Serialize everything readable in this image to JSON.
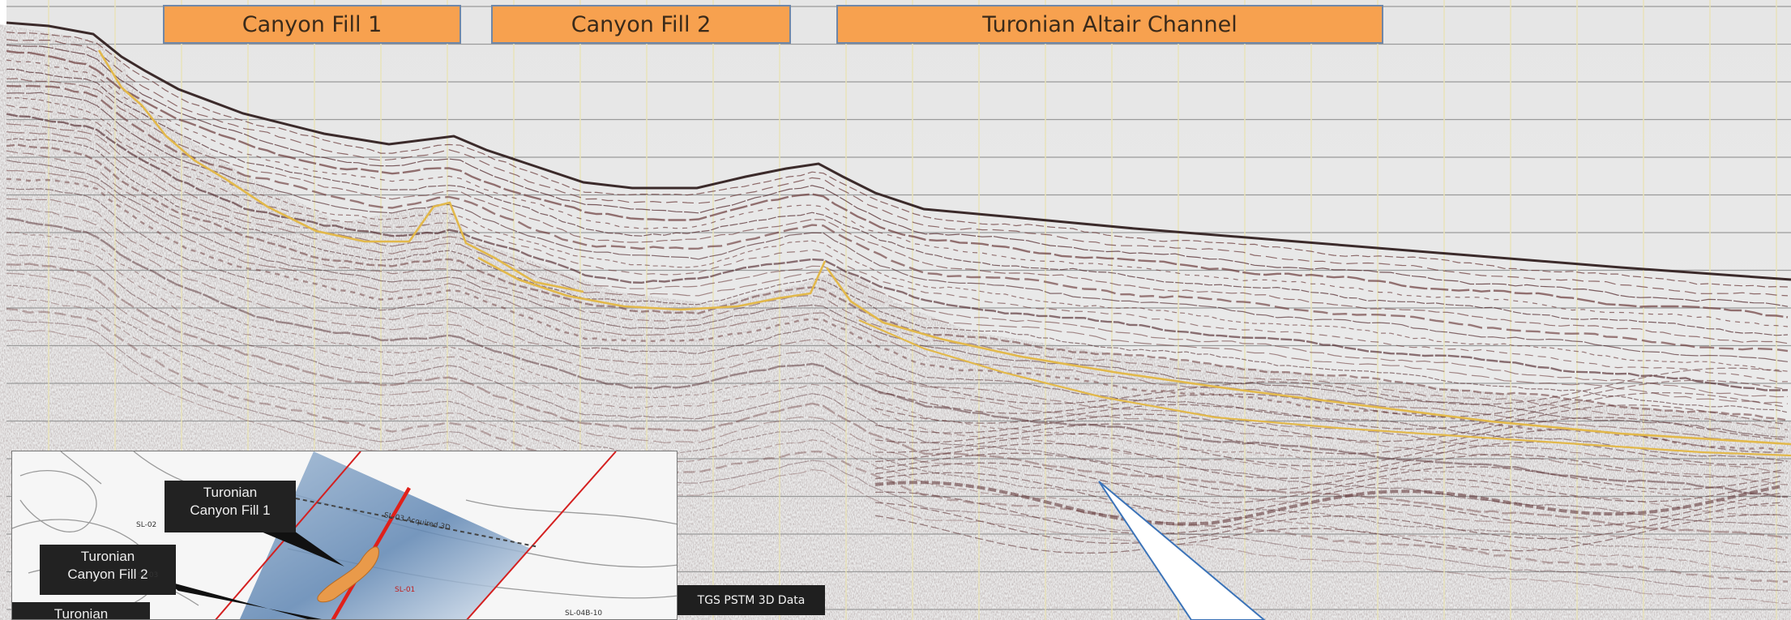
{
  "banners": {
    "canyon_fill_1": "Canyon Fill 1",
    "canyon_fill_2": "Canyon Fill 2",
    "altair_channel": "Turonian Altair Channel"
  },
  "inset": {
    "callout_1": {
      "line1": "Turonian",
      "line2": "Canyon Fill 1"
    },
    "callout_2": {
      "line1": "Turonian",
      "line2": "Canyon Fill 2"
    },
    "callout_3": {
      "line1": "Turonian"
    },
    "labels": {
      "survey": "SL-03 Acquired 3D",
      "line_a": "SL-02",
      "line_b": "SL-01",
      "line_c": "SL-04B-10",
      "line_d": "SL-03"
    }
  },
  "credit": "TGS PSTM 3D Data",
  "colors": {
    "banner_fill": "#f7a14f",
    "banner_border": "#6f87a8",
    "horizon_yellow": "#e2b84a",
    "section_line_red": "#d42020",
    "pointer_blue": "#3b73b8"
  }
}
